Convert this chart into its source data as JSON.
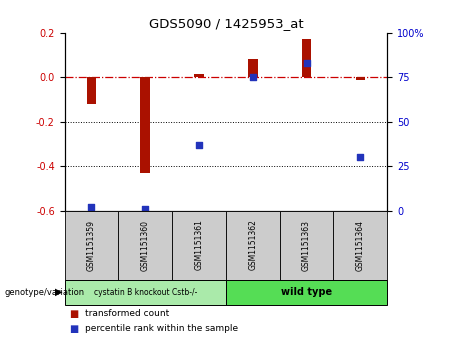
{
  "title": "GDS5090 / 1425953_at",
  "samples": [
    "GSM1151359",
    "GSM1151360",
    "GSM1151361",
    "GSM1151362",
    "GSM1151363",
    "GSM1151364"
  ],
  "red_bars": [
    -0.12,
    -0.43,
    0.015,
    0.08,
    0.17,
    -0.012
  ],
  "blue_dots_pct": [
    2,
    1,
    37,
    75,
    83,
    30
  ],
  "ylim_left": [
    -0.6,
    0.2
  ],
  "ylim_right": [
    0,
    100
  ],
  "yticks_left": [
    -0.6,
    -0.4,
    -0.2,
    0.0,
    0.2
  ],
  "yticks_right": [
    0,
    25,
    50,
    75,
    100
  ],
  "ytick_labels_right": [
    "0",
    "25",
    "50",
    "75",
    "100%"
  ],
  "dotted_lines": [
    -0.2,
    -0.4
  ],
  "group1_label": "cystatin B knockout Cstb-/-",
  "group2_label": "wild type",
  "group1_color": "#aaeaaa",
  "group2_color": "#55dd55",
  "genotype_label": "genotype/variation",
  "legend_red": "transformed count",
  "legend_blue": "percentile rank within the sample",
  "bar_color": "#aa1100",
  "dot_color": "#2233bb",
  "bar_width": 0.18,
  "bg_color": "#ffffff",
  "sample_box_color": "#cccccc",
  "left_label_color": "#cc0000",
  "right_label_color": "#0000cc"
}
